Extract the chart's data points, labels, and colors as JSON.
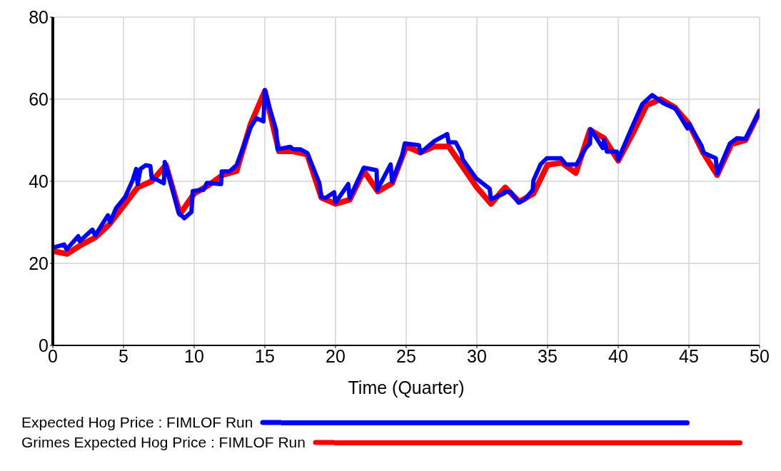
{
  "chart_data": {
    "type": "line",
    "xlabel": "Time (Quarter)",
    "xlim": [
      0,
      50
    ],
    "xticks": [
      0,
      5,
      10,
      15,
      20,
      25,
      30,
      35,
      40,
      45,
      50
    ],
    "ylim": [
      0,
      80
    ],
    "yticks": [
      0,
      20,
      40,
      60,
      80
    ],
    "grid": true,
    "legend": "bottom",
    "marker": "none",
    "line_style": "solid",
    "series": [
      {
        "name": "Expected Hog Price : FIMLOF Run",
        "color": "#0000ff",
        "x": [
          0,
          0.8,
          0.97,
          1.8,
          1.9,
          2.8,
          3.0,
          3.9,
          4.05,
          4.47,
          5.14,
          5.64,
          5.9,
          6.0,
          6.2,
          6.56,
          6.9,
          7.0,
          7.3,
          7.85,
          7.92,
          8.3,
          8.9,
          9.3,
          9.8,
          9.9,
          10.65,
          10.9,
          11.9,
          11.95,
          12.5,
          13,
          14,
          14.4,
          14.9,
          15,
          15.3,
          15.8,
          15.9,
          16.8,
          17,
          17.5,
          18,
          18.85,
          19,
          19.3,
          19.9,
          20,
          20.9,
          21,
          22,
          22.9,
          22.95,
          23.9,
          24,
          24.7,
          24.9,
          25.9,
          26,
          27,
          27.9,
          28,
          28.5,
          28.9,
          29,
          29.95,
          30.9,
          31,
          31.95,
          32,
          32.4,
          32.95,
          33.4,
          33.95,
          34,
          34.5,
          34.95,
          35.95,
          36.3,
          37.05,
          37.7,
          38,
          38.05,
          38.9,
          39,
          39.2,
          39.9,
          40,
          40.9,
          41.7,
          42.4,
          43.2,
          44.05,
          44.9,
          45,
          45.9,
          46.05,
          46.9,
          47,
          47.9,
          48.4,
          49,
          50
        ],
        "values": [
          23.8,
          24.6,
          23.4,
          26.6,
          25.4,
          28.2,
          26.8,
          31.7,
          30,
          33.4,
          36.3,
          40.2,
          43,
          39.3,
          43,
          43.9,
          43.7,
          40.7,
          40.5,
          39.5,
          44.7,
          40.2,
          32.3,
          31,
          32.5,
          37.6,
          37.9,
          39.6,
          39.3,
          42.4,
          42.4,
          43.9,
          53.2,
          55.4,
          54.6,
          62.2,
          58.3,
          52.4,
          47.8,
          48.4,
          47.8,
          47.8,
          46.9,
          39.6,
          36.2,
          35.9,
          37.3,
          34.8,
          39.3,
          35.9,
          43.3,
          42.7,
          37.9,
          44.1,
          39.9,
          46.1,
          49.2,
          48.8,
          46.9,
          49.8,
          51.5,
          49.5,
          49.5,
          46.9,
          45.3,
          40.7,
          38.2,
          35.6,
          37.1,
          37.5,
          37.3,
          34.8,
          35.6,
          37.9,
          40.2,
          44.1,
          45.6,
          45.6,
          44.1,
          44.1,
          48.1,
          49.2,
          52.7,
          48.1,
          50,
          47.2,
          47.2,
          45.3,
          52.6,
          58.8,
          61,
          59,
          57.7,
          52.9,
          54,
          48.6,
          46.9,
          45.6,
          41.9,
          49.2,
          50.5,
          50.3,
          57.1
        ]
      },
      {
        "name": "Grimes Expected Hog Price : FIMLOF Run",
        "color": "#ff0000",
        "x": [
          0,
          1,
          2,
          3,
          4,
          5,
          6,
          7,
          8,
          9,
          10,
          11,
          12,
          13,
          14,
          15,
          16,
          17,
          18,
          19,
          20,
          21,
          22,
          23,
          24,
          25,
          26,
          27,
          28,
          29,
          30,
          31,
          32,
          33,
          34,
          35,
          36,
          37,
          38,
          39,
          40,
          41,
          42,
          43,
          44,
          45,
          46,
          47,
          48,
          49,
          50
        ],
        "values": [
          23,
          22.3,
          24.5,
          26.3,
          29.5,
          34,
          38.5,
          40,
          44,
          32,
          37,
          39,
          41.5,
          42.5,
          54,
          62,
          47.3,
          47.3,
          46.5,
          36,
          34.5,
          35.5,
          42.5,
          37.5,
          39.5,
          48.5,
          47,
          48.5,
          48.5,
          43.5,
          38.5,
          34.5,
          38.5,
          35,
          37,
          44,
          44.5,
          42,
          52.5,
          50.5,
          45,
          51.5,
          58.5,
          60,
          58,
          54,
          47,
          41.5,
          49,
          50,
          57
        ]
      }
    ]
  }
}
